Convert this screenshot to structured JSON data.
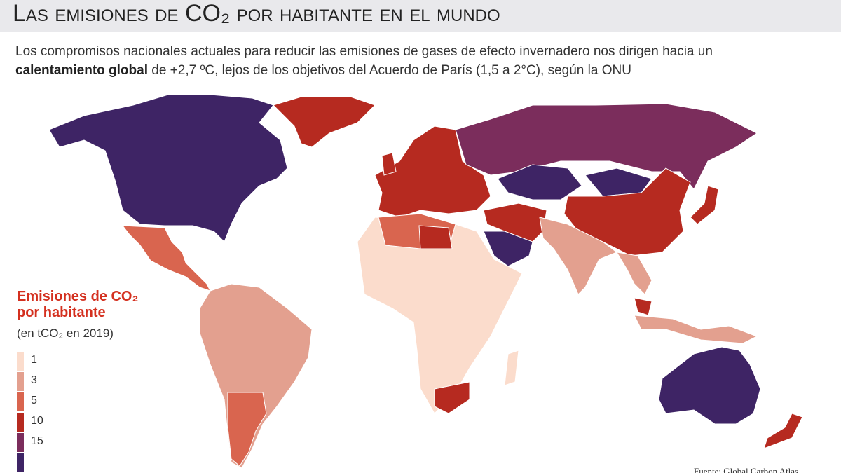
{
  "header": {
    "title": "Las emisiones de CO₂ por habitante en el mundo",
    "subtitle": [
      "Los compromisos nacionales actuales para reducir las emisiones de gases de efecto invernadero nos dirigen hacia un ",
      "calentamiento global",
      " de +2,7 ºC, lejos de los objetivos del Acuerdo de París (1,5 a 2°C), según la ONU"
    ]
  },
  "legend": {
    "title": "Emisiones de CO₂ por habitante",
    "note": "(en tCO₂ en 2019)",
    "labels": [
      1,
      3,
      5,
      10,
      15
    ],
    "colors": [
      "#fbdccc",
      "#e3a08f",
      "#d9654f",
      "#b62a20",
      "#7b2d5c",
      "#3e2465"
    ]
  },
  "source": "Fuente: Global Carbon Atlas"
}
